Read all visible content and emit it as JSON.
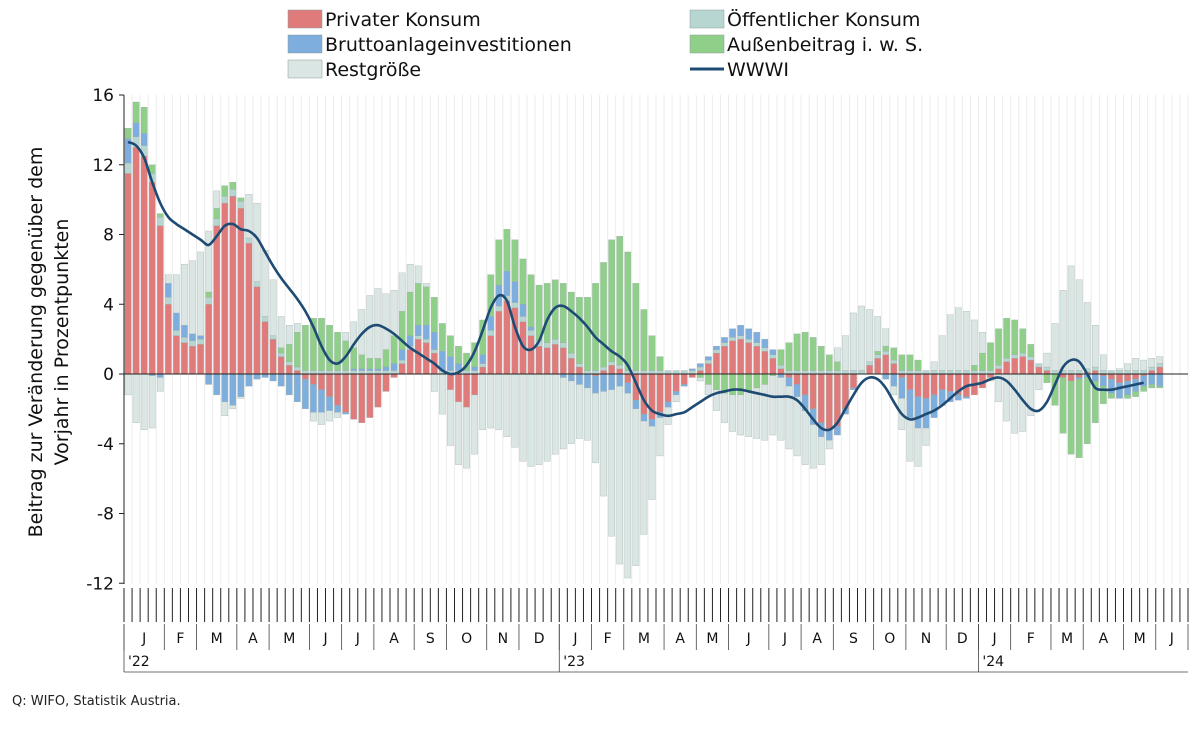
{
  "source": "Q: WIFO, Statistik Austria.",
  "chart_data": {
    "type": "bar",
    "stacked": true,
    "title": "",
    "ylabel_lines": [
      "Beitrag zur Veränderung gegenüber dem",
      "Vorjahr in Prozentpunkten"
    ],
    "ylim": [
      -12,
      16
    ],
    "yticks": [
      "16",
      "12",
      "8",
      "4",
      "0",
      "-4",
      "-8",
      "-12"
    ],
    "ytick_values": [
      16,
      12,
      8,
      4,
      0,
      -4,
      -8,
      -12
    ],
    "grid": "vertical",
    "legend_position": "top",
    "weeks_per_month": [
      5,
      4,
      5,
      4,
      5,
      4,
      4,
      5,
      4,
      5,
      4,
      5,
      4,
      4,
      5,
      4,
      4,
      5,
      4,
      4,
      5,
      4,
      5,
      4,
      4,
      5,
      4,
      5,
      4,
      4
    ],
    "months": [
      "J",
      "F",
      "M",
      "A",
      "M",
      "J",
      "J",
      "A",
      "S",
      "O",
      "N",
      "D",
      "J",
      "F",
      "M",
      "A",
      "M",
      "J",
      "J",
      "A",
      "S",
      "O",
      "N",
      "D",
      "J",
      "F",
      "M",
      "A",
      "M",
      "J"
    ],
    "years": [
      {
        "label": "'22",
        "month_index": 0
      },
      {
        "label": "'23",
        "month_index": 12
      },
      {
        "label": "'24",
        "month_index": 24
      }
    ],
    "series": [
      {
        "name": "Privater Konsum",
        "color": "#e07b7b",
        "values": [
          11.5,
          13.0,
          12.5,
          11.0,
          8.5,
          4.0,
          2.2,
          1.8,
          1.6,
          1.7,
          4.0,
          8.5,
          9.8,
          10.2,
          9.5,
          7.5,
          5.0,
          3.0,
          2.0,
          1.0,
          0.5,
          0.2,
          -0.3,
          -0.6,
          -0.9,
          -1.3,
          -1.8,
          -2.2,
          -2.6,
          -2.8,
          -2.5,
          -1.9,
          -1.0,
          -0.2,
          0.6,
          1.4,
          2.0,
          1.8,
          1.2,
          0.0,
          -0.9,
          -1.6,
          -1.9,
          -1.2,
          0.4,
          2.2,
          3.6,
          4.2,
          3.8,
          3.0,
          2.2,
          1.6,
          1.5,
          1.7,
          1.5,
          0.9,
          0.4,
          0.0,
          -0.1,
          0.2,
          0.5,
          0.3,
          -0.5,
          -1.5,
          -2.3,
          -2.6,
          -2.2,
          -1.6,
          -1.0,
          -0.6,
          -0.2,
          0.2,
          0.6,
          1.2,
          1.6,
          1.9,
          2.0,
          1.8,
          1.6,
          1.3,
          0.9,
          0.3,
          -0.2,
          -0.6,
          -1.2,
          -2.0,
          -2.8,
          -3.2,
          -3.0,
          -2.0,
          -0.8,
          0.0,
          0.5,
          0.9,
          1.1,
          0.6,
          -0.2,
          -0.9,
          -1.3,
          -1.4,
          -1.2,
          -0.9,
          -1.0,
          -1.2,
          -1.3,
          -1.2,
          -0.8,
          -0.2,
          0.3,
          0.7,
          0.9,
          1.0,
          0.8,
          0.4,
          0.2,
          0.0,
          -0.2,
          -0.4,
          -0.2,
          0.1,
          0.2,
          -0.1,
          -0.3,
          -0.5,
          -0.4,
          -0.3,
          -0.1,
          0.2,
          0.4
        ]
      },
      {
        "name": "Öffentlicher Konsum",
        "color": "#b7d6d2",
        "values": [
          0.6,
          0.6,
          0.6,
          0.5,
          0.5,
          0.4,
          0.3,
          0.3,
          0.3,
          0.3,
          0.4,
          0.4,
          0.4,
          0.4,
          0.4,
          0.3,
          0.3,
          0.3,
          0.2,
          0.2,
          0.2,
          0.2,
          0.2,
          0.2,
          0.2,
          0.2,
          0.2,
          0.2,
          0.2,
          0.2,
          0.2,
          0.2,
          0.2,
          0.2,
          0.2,
          0.2,
          0.2,
          0.2,
          0.2,
          0.2,
          0.2,
          0.2,
          0.2,
          0.2,
          0.2,
          0.3,
          0.3,
          0.3,
          0.3,
          0.3,
          0.3,
          0.3,
          0.3,
          0.3,
          0.3,
          0.3,
          0.2,
          0.2,
          0.2,
          0.2,
          0.2,
          0.2,
          0.2,
          0.2,
          0.2,
          0.2,
          0.2,
          0.2,
          0.2,
          0.2,
          0.2,
          0.2,
          0.2,
          0.2,
          0.2,
          0.2,
          0.2,
          0.2,
          0.2,
          0.2,
          0.2,
          0.2,
          0.2,
          0.2,
          0.2,
          0.2,
          0.2,
          0.2,
          0.2,
          0.2,
          0.2,
          0.2,
          0.2,
          0.2,
          0.2,
          0.2,
          0.2,
          0.2,
          0.2,
          0.2,
          0.2,
          0.2,
          0.2,
          0.2,
          0.2,
          0.2,
          0.2,
          0.2,
          0.2,
          0.2,
          0.2,
          0.2,
          0.2,
          0.2,
          0.2,
          0.2,
          0.2,
          0.2,
          0.2,
          0.2,
          0.2,
          0.2,
          0.2,
          0.2,
          0.2,
          0.2,
          0.2,
          0.2,
          0.2
        ]
      },
      {
        "name": "Bruttoanlageinvestitionen",
        "color": "#7eaedd",
        "values": [
          1.4,
          0.8,
          0.7,
          -0.1,
          -0.2,
          0.8,
          1.0,
          0.7,
          0.4,
          0.2,
          -0.6,
          -1.2,
          -1.6,
          -1.8,
          -1.3,
          -0.7,
          -0.3,
          -0.2,
          -0.4,
          -0.7,
          -1.2,
          -1.6,
          -1.7,
          -1.6,
          -1.3,
          -0.8,
          -0.4,
          -0.1,
          0.1,
          0.1,
          0.1,
          0.1,
          0.2,
          0.4,
          0.6,
          0.6,
          0.6,
          0.8,
          1.0,
          1.1,
          0.8,
          0.4,
          0.0,
          0.2,
          0.5,
          0.8,
          1.2,
          1.4,
          1.2,
          0.7,
          0.2,
          0.0,
          0.0,
          0.0,
          -0.2,
          -0.4,
          -0.6,
          -0.8,
          -1.0,
          -1.0,
          -0.9,
          -0.7,
          -0.6,
          -0.5,
          -0.4,
          -0.4,
          -0.3,
          -0.3,
          -0.2,
          -0.1,
          0.1,
          0.2,
          0.2,
          0.2,
          0.3,
          0.5,
          0.6,
          0.6,
          0.6,
          0.5,
          0.3,
          -0.2,
          -0.5,
          -0.7,
          -0.9,
          -0.9,
          -0.8,
          -0.6,
          -0.5,
          -0.3,
          -0.1,
          0.0,
          0.0,
          0.0,
          -0.3,
          -0.7,
          -1.2,
          -1.6,
          -1.8,
          -1.7,
          -1.3,
          -0.9,
          -0.6,
          -0.3,
          -0.1,
          0.0,
          0.0,
          0.0,
          0.0,
          0.0,
          0.0,
          0.0,
          0.0,
          0.0,
          0.0,
          0.0,
          0.0,
          0.0,
          -0.1,
          -0.2,
          -0.4,
          -0.6,
          -0.8,
          -0.9,
          -0.8,
          -0.7,
          -0.6,
          -0.6,
          -0.7
        ]
      },
      {
        "name": "Außenbeitrag i. w. S.",
        "color": "#8fcf8a",
        "values": [
          0.6,
          1.2,
          1.5,
          0.5,
          0.2,
          0.0,
          0.0,
          0.0,
          0.0,
          0.0,
          0.3,
          0.6,
          0.6,
          0.4,
          0.2,
          0.0,
          0.0,
          0.0,
          0.0,
          0.3,
          1.0,
          2.0,
          2.6,
          3.0,
          3.0,
          2.6,
          2.2,
          1.7,
          1.2,
          0.8,
          0.6,
          0.6,
          1.0,
          1.6,
          2.2,
          2.5,
          2.4,
          2.2,
          2.0,
          1.6,
          1.2,
          1.0,
          1.0,
          1.4,
          2.0,
          2.4,
          2.6,
          2.4,
          2.4,
          2.6,
          3.0,
          3.2,
          3.4,
          3.4,
          3.4,
          3.5,
          3.8,
          4.2,
          5.0,
          6.0,
          7.0,
          7.4,
          6.8,
          5.0,
          3.5,
          2.0,
          0.8,
          0.0,
          0.0,
          0.0,
          0.0,
          -0.2,
          -0.6,
          -0.9,
          -1.1,
          -1.2,
          -1.2,
          -1.0,
          -0.8,
          -0.6,
          -0.1,
          0.9,
          1.6,
          2.1,
          2.2,
          1.9,
          1.4,
          0.9,
          0.5,
          0.0,
          0.0,
          0.0,
          0.0,
          0.2,
          0.3,
          0.7,
          0.9,
          0.9,
          0.6,
          0.0,
          0.0,
          0.0,
          0.0,
          0.0,
          0.0,
          0.3,
          1.0,
          1.6,
          2.1,
          2.3,
          2.0,
          1.4,
          0.7,
          0.0,
          -0.5,
          -1.8,
          -3.2,
          -4.2,
          -4.5,
          -3.8,
          -2.4,
          -1.0,
          -0.3,
          0.0,
          -0.2,
          -0.3,
          -0.3,
          -0.2,
          -0.1,
          0.0
        ]
      },
      {
        "name": "Restgröße",
        "color": "#d9e6e3",
        "values": [
          -1.2,
          -2.8,
          -3.2,
          -3.0,
          -0.8,
          0.5,
          2.2,
          3.5,
          4.2,
          4.8,
          3.5,
          1.0,
          -0.8,
          -0.2,
          -0.1,
          2.5,
          4.5,
          3.8,
          3.2,
          1.8,
          1.1,
          0.5,
          0.0,
          -0.5,
          -0.7,
          -0.6,
          -0.3,
          0.5,
          1.5,
          2.6,
          3.6,
          4.0,
          3.2,
          2.6,
          2.2,
          1.6,
          1.0,
          0.2,
          -1.0,
          -2.3,
          -3.2,
          -3.6,
          -3.5,
          -3.4,
          -3.2,
          -3.1,
          -3.2,
          -3.6,
          -4.2,
          -5.0,
          -5.3,
          -5.2,
          -5.0,
          -4.6,
          -4.1,
          -3.6,
          -3.1,
          -3.0,
          -4.0,
          -6.0,
          -8.4,
          -10.2,
          -10.6,
          -9.0,
          -6.5,
          -4.2,
          -2.2,
          -1.0,
          -0.4,
          0.0,
          0.0,
          -0.2,
          -0.6,
          -1.2,
          -1.7,
          -2.1,
          -2.3,
          -2.6,
          -2.9,
          -3.2,
          -3.4,
          -3.6,
          -3.6,
          -3.4,
          -3.1,
          -2.5,
          -1.6,
          -0.5,
          0.8,
          2.0,
          3.3,
          3.7,
          3.0,
          2.0,
          1.0,
          -0.5,
          -1.8,
          -2.5,
          -2.2,
          -1.0,
          0.5,
          2.0,
          3.2,
          3.6,
          3.4,
          2.6,
          1.2,
          -0.2,
          -1.6,
          -2.7,
          -3.4,
          -3.3,
          -2.4,
          -0.9,
          0.8,
          2.7,
          4.6,
          6.0,
          5.2,
          3.8,
          2.4,
          0.9,
          0.0,
          0.1,
          0.4,
          0.7,
          0.6,
          0.5,
          0.4
        ]
      },
      {
        "name": "WWWI",
        "color": "#1e4b73",
        "type": "line",
        "values": [
          13.3,
          13.1,
          12.4,
          11.0,
          9.8,
          9.0,
          8.6,
          8.3,
          8.0,
          7.7,
          7.4,
          7.9,
          8.5,
          8.6,
          8.3,
          8.2,
          7.8,
          7.0,
          6.2,
          5.5,
          4.9,
          4.3,
          3.6,
          2.7,
          1.6,
          0.8,
          0.6,
          1.0,
          1.7,
          2.3,
          2.7,
          2.8,
          2.6,
          2.3,
          1.9,
          1.5,
          1.2,
          0.9,
          0.6,
          0.2,
          0.0,
          0.1,
          0.5,
          1.3,
          2.5,
          3.8,
          4.5,
          4.2,
          2.7,
          1.6,
          1.4,
          1.9,
          3.1,
          3.8,
          3.9,
          3.6,
          3.2,
          2.7,
          2.1,
          1.7,
          1.3,
          1.0,
          0.5,
          -0.5,
          -1.5,
          -2.1,
          -2.3,
          -2.4,
          -2.3,
          -2.2,
          -1.9,
          -1.6,
          -1.3,
          -1.1,
          -1.0,
          -0.9,
          -0.9,
          -1.0,
          -1.1,
          -1.2,
          -1.3,
          -1.3,
          -1.3,
          -1.5,
          -2.0,
          -2.6,
          -3.1,
          -3.2,
          -2.8,
          -2.0,
          -1.2,
          -0.5,
          -0.2,
          -0.3,
          -0.8,
          -1.6,
          -2.3,
          -2.6,
          -2.5,
          -2.3,
          -2.1,
          -1.8,
          -1.4,
          -1.0,
          -0.7,
          -0.6,
          -0.5,
          -0.3,
          -0.2,
          -0.4,
          -0.9,
          -1.5,
          -2.0,
          -2.1,
          -1.6,
          -0.6,
          0.4,
          0.8,
          0.7,
          0.0,
          -0.8,
          -0.9,
          -0.9,
          -0.8,
          -0.7,
          -0.6,
          -0.5
        ]
      }
    ]
  }
}
